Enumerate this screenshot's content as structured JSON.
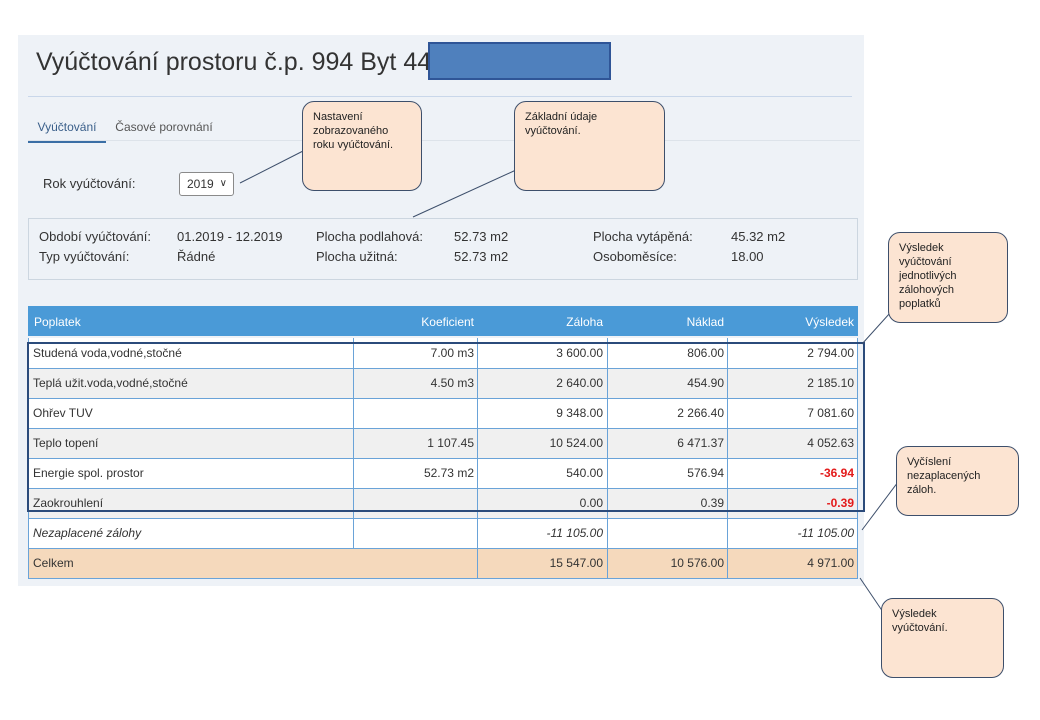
{
  "header": {
    "title": "Vyúčtování prostoru č.p. 994 Byt 44"
  },
  "tabs": [
    {
      "label": "Vyúčtování",
      "active": true
    },
    {
      "label": "Časové porovnání",
      "active": false
    }
  ],
  "year": {
    "label": "Rok vyúčtování:",
    "selected": "2019"
  },
  "info": {
    "period_label": "Období vyúčtování:",
    "period_value": "01.2019 - 12.2019",
    "type_label": "Typ vyúčtování:",
    "type_value": "Řádné",
    "floor_label": "Plocha podlahová:",
    "floor_value": "52.73 m2",
    "usable_label": "Plocha užitná:",
    "usable_value": "52.73 m2",
    "heated_label": "Plocha vytápěná:",
    "heated_value": "45.32 m2",
    "months_label": "Osoboměsíce:",
    "months_value": "18.00"
  },
  "table": {
    "headers": {
      "fee": "Poplatek",
      "coef": "Koeficient",
      "advance": "Záloha",
      "cost": "Náklad",
      "result": "Výsledek"
    },
    "rows": [
      {
        "fee": "Studená voda,vodné,stočné",
        "coef": "7.00 m3",
        "advance": "3 600.00",
        "cost": "806.00",
        "result": "2 794.00"
      },
      {
        "fee": "Teplá užit.voda,vodné,stočné",
        "coef": "4.50 m3",
        "advance": "2 640.00",
        "cost": "454.90",
        "result": "2 185.10"
      },
      {
        "fee": "Ohřev TUV",
        "coef": "",
        "advance": "9 348.00",
        "cost": "2 266.40",
        "result": "7 081.60"
      },
      {
        "fee": "Teplo topení",
        "coef": "1 107.45",
        "advance": "10 524.00",
        "cost": "6 471.37",
        "result": "4 052.63"
      },
      {
        "fee": "Energie spol. prostor",
        "coef": "52.73 m2",
        "advance": "540.00",
        "cost": "576.94",
        "result": "-36.94"
      },
      {
        "fee": "Zaokrouhlení",
        "coef": "",
        "advance": "0.00",
        "cost": "0.39",
        "result": "-0.39"
      }
    ],
    "unpaid": {
      "fee": "Nezaplacené zálohy",
      "advance": "-11 105.00",
      "result": "-11 105.00"
    },
    "total": {
      "fee": "Celkem",
      "advance": "15 547.00",
      "cost": "10 576.00",
      "result": "4 971.00"
    }
  },
  "callouts": {
    "year_setting": "Nastavení zobrazovaného roku vyúčtování.",
    "basic_data": "Základní údaje vyúčtování.",
    "fee_results": "Výsledek vyúčtování jednotlivých zálohových poplatků",
    "unpaid_calc": "Vyčíslení nezaplacených záloh.",
    "result": "Výsledek vyúčtování."
  },
  "colors": {
    "header_blue": "#4a9ad7",
    "total_row": "#f5d9bc",
    "negative": "#e31b1b",
    "callout_fill": "#fce4d2",
    "redaction": "#4f80bd"
  }
}
